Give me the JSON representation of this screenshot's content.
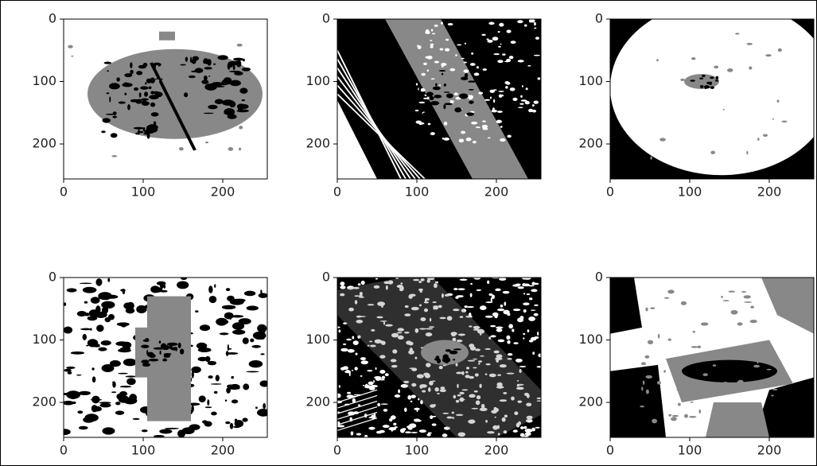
{
  "chart_data": [
    {
      "type": "image",
      "xlim": [
        0,
        256
      ],
      "ylim": [
        256,
        0
      ],
      "xticks": [
        0,
        100,
        200
      ],
      "yticks": [
        0,
        100,
        200
      ]
    },
    {
      "type": "image",
      "xlim": [
        0,
        256
      ],
      "ylim": [
        256,
        0
      ],
      "xticks": [
        0,
        100,
        200
      ],
      "yticks": [
        0,
        100,
        200
      ]
    },
    {
      "type": "image",
      "xlim": [
        0,
        256
      ],
      "ylim": [
        256,
        0
      ],
      "xticks": [
        0,
        100,
        200
      ],
      "yticks": [
        0,
        100,
        200
      ]
    },
    {
      "type": "image",
      "xlim": [
        0,
        256
      ],
      "ylim": [
        256,
        0
      ],
      "xticks": [
        0,
        100,
        200
      ],
      "yticks": [
        0,
        100,
        200
      ]
    },
    {
      "type": "image",
      "xlim": [
        0,
        256
      ],
      "ylim": [
        256,
        0
      ],
      "xticks": [
        0,
        100,
        200
      ],
      "yticks": [
        0,
        100,
        200
      ]
    },
    {
      "type": "image",
      "xlim": [
        0,
        256
      ],
      "ylim": [
        256,
        0
      ],
      "xticks": [
        0,
        100,
        200
      ],
      "yticks": [
        0,
        100,
        200
      ]
    }
  ]
}
